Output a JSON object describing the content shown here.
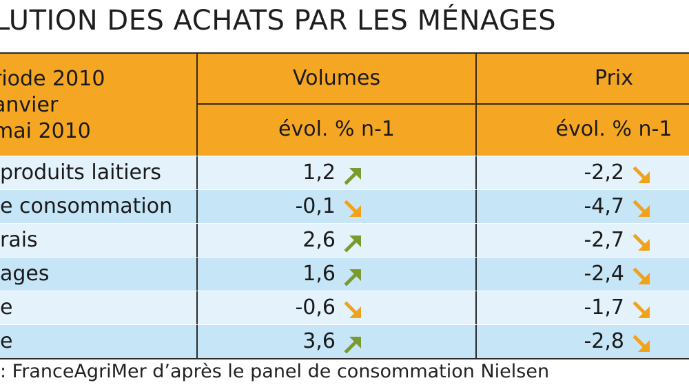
{
  "title": "LUTION DES ACHATS PAR LES MÉNAGES",
  "header": {
    "period_lines": [
      "riode 2010",
      "anvier",
      "mai 2010"
    ],
    "volumes": "Volumes",
    "prix": "Prix",
    "evol_volumes": "évol. % n-1",
    "evol_prix": "évol. % n-1"
  },
  "chart_data": {
    "type": "table",
    "columns": [
      "Volumes évol. % n-1",
      "Prix évol. % n-1"
    ],
    "rows": [
      {
        "label": "produits laitiers",
        "volumes": "1,2",
        "volumes_trend": "up",
        "prix": "-2,2",
        "prix_trend": "down"
      },
      {
        "label": "e consommation",
        "volumes": "-0,1",
        "volumes_trend": "down",
        "prix": "-4,7",
        "prix_trend": "down"
      },
      {
        "label": "rais",
        "volumes": "2,6",
        "volumes_trend": "up",
        "prix": "-2,7",
        "prix_trend": "down"
      },
      {
        "label": "ages",
        "volumes": "1,6",
        "volumes_trend": "up",
        "prix": "-2,4",
        "prix_trend": "down"
      },
      {
        "label": "e",
        "volumes": "-0,6",
        "volumes_trend": "down",
        "prix": "-1,7",
        "prix_trend": "down"
      },
      {
        "label": "e",
        "volumes": "3,6",
        "volumes_trend": "up",
        "prix": "-2,8",
        "prix_trend": "down"
      }
    ]
  },
  "colors": {
    "header_bg": "#f5a623",
    "row_light": "#e4f2fb",
    "row_dark": "#c6e5f7",
    "arrow_up": "#7a9a2e",
    "arrow_down": "#f0a21c"
  },
  "source": ": FranceAgriMer d’après le panel de consommation Nielsen"
}
